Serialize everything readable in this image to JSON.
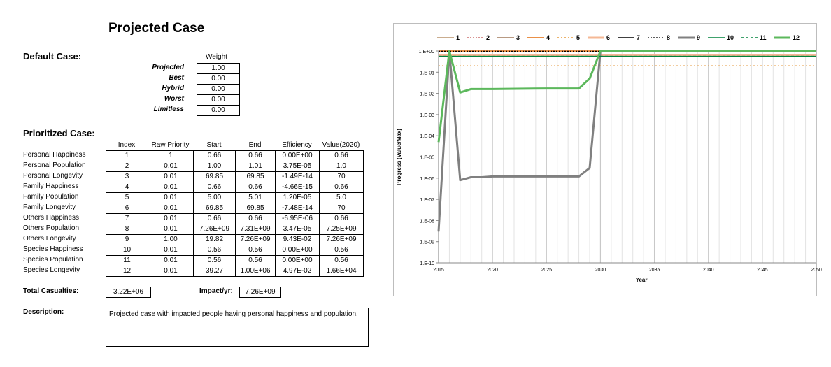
{
  "title": "Projected Case",
  "default_case": {
    "label": "Default Case:",
    "weight_header": "Weight",
    "rows": [
      {
        "name": "Projected",
        "value": "1.00"
      },
      {
        "name": "Best",
        "value": "0.00"
      },
      {
        "name": "Hybrid",
        "value": "0.00"
      },
      {
        "name": "Worst",
        "value": "0.00"
      },
      {
        "name": "Limitless",
        "value": "0.00"
      }
    ]
  },
  "prioritized_case": {
    "label": "Prioritized Case:",
    "headers": [
      "Index",
      "Raw Priority",
      "Start",
      "End",
      "Efficiency",
      "Value(2020)"
    ],
    "rows": [
      {
        "name": "Personal Happiness",
        "cells": [
          "1",
          "1",
          "0.66",
          "0.66",
          "0.00E+00",
          "0.66"
        ]
      },
      {
        "name": "Personal Population",
        "cells": [
          "2",
          "0.01",
          "1.00",
          "1.01",
          "3.75E-05",
          "1.0"
        ]
      },
      {
        "name": "Personal Longevity",
        "cells": [
          "3",
          "0.01",
          "69.85",
          "69.85",
          "-1.49E-14",
          "70"
        ]
      },
      {
        "name": "Family Happiness",
        "cells": [
          "4",
          "0.01",
          "0.66",
          "0.66",
          "-4.66E-15",
          "0.66"
        ]
      },
      {
        "name": "Family Population",
        "cells": [
          "5",
          "0.01",
          "5.00",
          "5.01",
          "1.20E-05",
          "5.0"
        ]
      },
      {
        "name": "Family Longevity",
        "cells": [
          "6",
          "0.01",
          "69.85",
          "69.85",
          "-7.48E-14",
          "70"
        ]
      },
      {
        "name": "Others Happiness",
        "cells": [
          "7",
          "0.01",
          "0.66",
          "0.66",
          "-6.95E-06",
          "0.66"
        ]
      },
      {
        "name": "Others Population",
        "cells": [
          "8",
          "0.01",
          "7.26E+09",
          "7.31E+09",
          "3.47E-05",
          "7.25E+09"
        ]
      },
      {
        "name": "Others Longevity",
        "cells": [
          "9",
          "1.00",
          "19.82",
          "7.26E+09",
          "9.43E-02",
          "7.26E+09"
        ]
      },
      {
        "name": "Species Happiness",
        "cells": [
          "10",
          "0.01",
          "0.56",
          "0.56",
          "0.00E+00",
          "0.56"
        ]
      },
      {
        "name": "Species Population",
        "cells": [
          "11",
          "0.01",
          "0.56",
          "0.56",
          "0.00E+00",
          "0.56"
        ]
      },
      {
        "name": "Species Longevity",
        "cells": [
          "12",
          "0.01",
          "39.27",
          "1.00E+06",
          "4.97E-02",
          "1.66E+04"
        ]
      }
    ]
  },
  "totals": {
    "casualties_label": "Total Casualties:",
    "casualties_value": "3.22E+06",
    "impact_label": "Impact/yr:",
    "impact_value": "7.26E+09"
  },
  "description": {
    "label": "Description:",
    "text": "Projected case with impacted people having personal happiness and population."
  },
  "chart_data": {
    "type": "line",
    "xlabel": "Year",
    "ylabel": "Progress (Value/Max)",
    "yscale": "log",
    "xlim": [
      2015,
      2050
    ],
    "ylim": [
      1e-10,
      1
    ],
    "x_ticks": [
      2015,
      2020,
      2025,
      2030,
      2035,
      2040,
      2045,
      2050
    ],
    "y_ticks": [
      "1.E+00",
      "1.E-01",
      "1.E-02",
      "1.E-03",
      "1.E-04",
      "1.E-05",
      "1.E-06",
      "1.E-07",
      "1.E-08",
      "1.E-09",
      "1.E-10"
    ],
    "legend_position": "top",
    "grid": "vertical yearly gridlines",
    "series": [
      {
        "name": "1",
        "color": "#b8926a",
        "dash": "",
        "width": 1.5,
        "x": [
          2015,
          2050
        ],
        "y": [
          0.66,
          0.66
        ]
      },
      {
        "name": "2",
        "color": "#c0504d",
        "dash": "2,2",
        "width": 1.2,
        "x": [
          2015,
          2050
        ],
        "y": [
          1.0,
          1.0
        ]
      },
      {
        "name": "3",
        "color": "#a0785a",
        "dash": "",
        "width": 1.5,
        "x": [
          2015,
          2050
        ],
        "y": [
          0.66,
          0.66
        ]
      },
      {
        "name": "4",
        "color": "#e46c0a",
        "dash": "",
        "width": 1.5,
        "x": [
          2015,
          2050
        ],
        "y": [
          1.0,
          1.0
        ]
      },
      {
        "name": "5",
        "color": "#e69a3c",
        "dash": "2,3",
        "width": 1.5,
        "x": [
          2015,
          2050
        ],
        "y": [
          0.2,
          0.2
        ]
      },
      {
        "name": "6",
        "color": "#f5b895",
        "dash": "",
        "width": 3,
        "x": [
          2015,
          2050
        ],
        "y": [
          0.66,
          0.66
        ]
      },
      {
        "name": "7",
        "color": "#000000",
        "dash": "",
        "width": 1.5,
        "x": [
          2015,
          2016,
          2017,
          2018,
          2019,
          2020,
          2028,
          2029,
          2030,
          2050
        ],
        "y": [
          3e-09,
          1.0,
          8e-07,
          1.1e-06,
          1.1e-06,
          1.2e-06,
          1.2e-06,
          3e-06,
          1.0,
          1.0
        ]
      },
      {
        "name": "8",
        "color": "#000000",
        "dash": "2,2",
        "width": 1.2,
        "x": [
          2015,
          2050
        ],
        "y": [
          0.97,
          0.97
        ]
      },
      {
        "name": "9",
        "color": "#808080",
        "dash": "",
        "width": 3,
        "x": [
          2015,
          2016,
          2017,
          2018,
          2019,
          2020,
          2028,
          2029,
          2030,
          2050
        ],
        "y": [
          3e-09,
          1.0,
          8e-07,
          1.1e-06,
          1.1e-06,
          1.2e-06,
          1.2e-06,
          3e-06,
          1.0,
          1.0
        ]
      },
      {
        "name": "10",
        "color": "#00843d",
        "dash": "",
        "width": 1.5,
        "x": [
          2015,
          2050
        ],
        "y": [
          0.56,
          0.56
        ]
      },
      {
        "name": "11",
        "color": "#00843d",
        "dash": "4,3",
        "width": 1.5,
        "x": [
          2015,
          2050
        ],
        "y": [
          0.56,
          0.56
        ]
      },
      {
        "name": "12",
        "color": "#5cb85c",
        "dash": "",
        "width": 3,
        "x": [
          2015,
          2016,
          2017,
          2018,
          2019,
          2020,
          2025,
          2028,
          2029,
          2030,
          2050
        ],
        "y": [
          5e-05,
          1.0,
          0.011,
          0.016,
          0.016,
          0.016,
          0.017,
          0.017,
          0.05,
          1.0,
          1.0
        ]
      }
    ]
  }
}
